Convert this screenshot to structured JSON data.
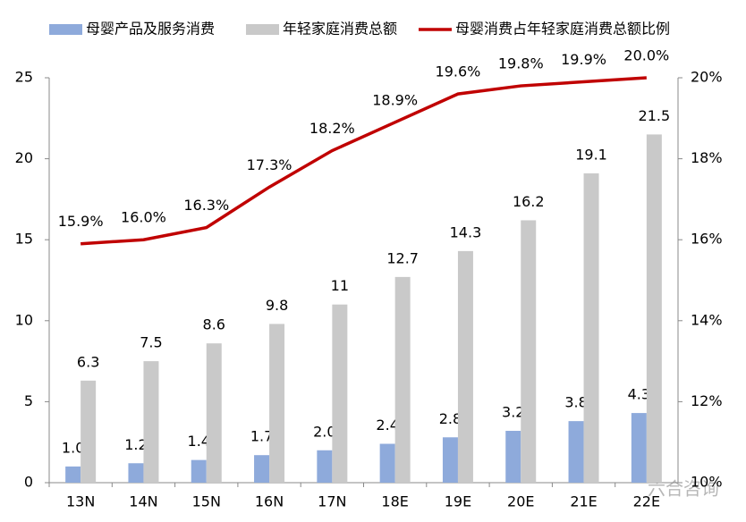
{
  "chart_data": {
    "type": "bar_line",
    "categories": [
      "13N",
      "14N",
      "15N",
      "16N",
      "17N",
      "18E",
      "19E",
      "20E",
      "21E",
      "22E"
    ],
    "series": [
      {
        "name": "母婴产品及服务消费",
        "color": "#8eaadb",
        "type": "bar",
        "values": [
          1.0,
          1.2,
          1.4,
          1.7,
          2.0,
          2.4,
          2.8,
          3.2,
          3.8,
          4.3
        ],
        "value_labels": [
          "1.0",
          "1.2",
          "1.4",
          "1.7",
          "2.0",
          "2.4",
          "2.8",
          "3.2",
          "3.8",
          "4.3"
        ]
      },
      {
        "name": "年轻家庭消费总额",
        "color": "#c9c9c9",
        "type": "bar",
        "values": [
          6.3,
          7.5,
          8.6,
          9.8,
          11,
          12.7,
          14.3,
          16.2,
          19.1,
          21.5
        ],
        "value_labels": [
          "6.3",
          "7.5",
          "8.6",
          "9.8",
          "11",
          "12.7",
          "14.3",
          "16.2",
          "19.1",
          "21.5"
        ]
      },
      {
        "name": "母婴消费占年轻家庭消费总额比例",
        "color": "#c00000",
        "type": "line",
        "axis": "y2",
        "values": [
          15.9,
          16.0,
          16.3,
          17.3,
          18.2,
          18.9,
          19.6,
          19.8,
          19.9,
          20.0
        ],
        "value_labels": [
          "15.9%",
          "16.0%",
          "16.3%",
          "17.3%",
          "18.2%",
          "18.9%",
          "19.6%",
          "19.8%",
          "19.9%",
          "20.0%"
        ]
      }
    ],
    "ylim": [
      0,
      25
    ],
    "yticks": [
      0,
      5,
      10,
      15,
      20,
      25
    ],
    "y2lim": [
      10,
      20
    ],
    "y2ticks": [
      {
        "value": 10,
        "label": "10%"
      },
      {
        "value": 12,
        "label": "12%"
      },
      {
        "value": 14,
        "label": "14%"
      },
      {
        "value": 16,
        "label": "16%"
      },
      {
        "value": 18,
        "label": "18%"
      },
      {
        "value": 20,
        "label": "20%"
      }
    ],
    "legend": "top",
    "watermark": "六合咨询"
  }
}
